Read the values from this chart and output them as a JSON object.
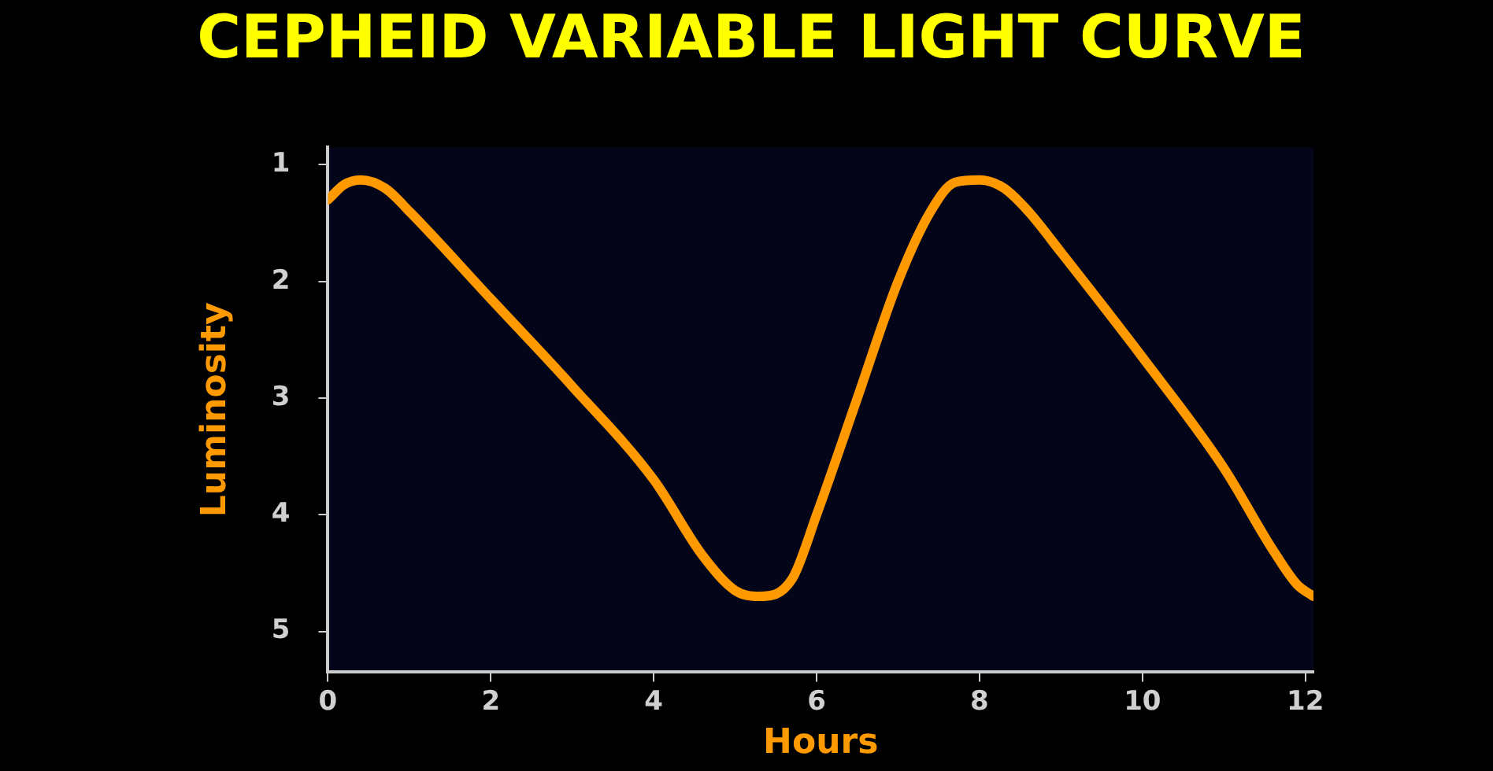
{
  "chart_data": {
    "type": "line",
    "title": "CEPHEID VARIABLE LIGHT CURVE",
    "xlabel": "Hours",
    "ylabel": "Luminosity",
    "x": [
      0,
      0.2,
      0.4,
      0.7,
      1,
      2,
      3,
      4,
      4.6,
      5,
      5.3,
      5.7,
      6,
      6.5,
      7,
      7.4,
      7.7,
      8,
      8.3,
      8.6,
      9,
      10,
      11,
      11.6,
      11.9,
      12.1
    ],
    "values": [
      1.3,
      1.17,
      1.13,
      1.2,
      1.4,
      2.15,
      2.9,
      3.7,
      4.35,
      4.65,
      4.7,
      4.55,
      4.0,
      3.0,
      2.0,
      1.4,
      1.15,
      1.13,
      1.2,
      1.4,
      1.75,
      2.65,
      3.6,
      4.3,
      4.6,
      4.7
    ],
    "color": "#ff9900",
    "line_style": "solid",
    "grid": false,
    "legend": false,
    "xlim": [
      0,
      12.1
    ],
    "ylim": [
      5.35,
      0.85
    ],
    "xticks": [
      0,
      2,
      4,
      6,
      8,
      10,
      12
    ],
    "yticks": [
      1,
      2,
      3,
      4,
      5
    ]
  }
}
